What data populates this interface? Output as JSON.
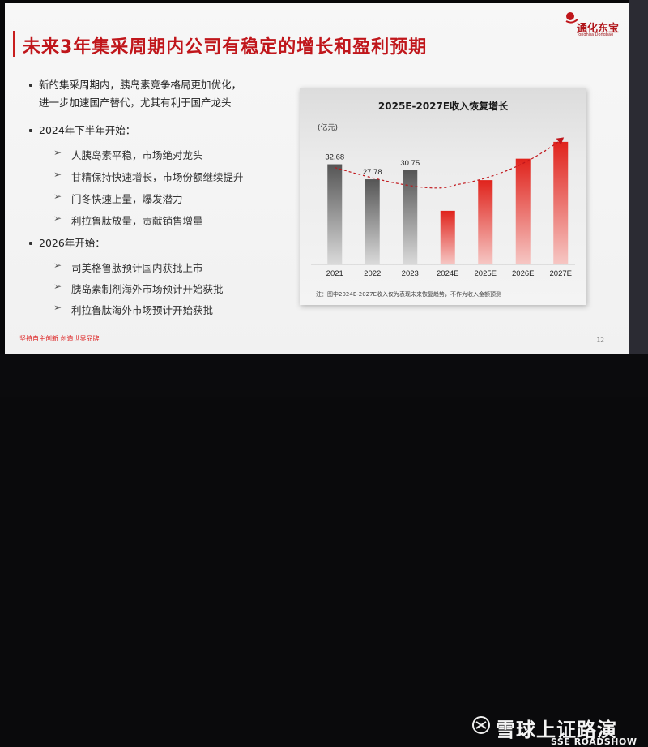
{
  "slide": {
    "title": "未来3年集采周期内公司有稳定的增长和盈利预期",
    "logo": {
      "name": "通化东宝",
      "sub": "Tonghua Dongbao"
    },
    "bullets": [
      {
        "lines": [
          "新的集采周期内，胰岛素竞争格局更加优化，",
          "进一步加速国产替代，尤其有利于国产龙头"
        ],
        "subs": []
      },
      {
        "lines": [
          "2024年下半年开始："
        ],
        "subs": [
          "人胰岛素平稳，市场绝对龙头",
          "甘精保持快速增长，市场份额继续提升",
          "门冬快速上量，爆发潜力",
          "利拉鲁肽放量，贡献销售增量"
        ]
      },
      {
        "lines": [
          "2026年开始："
        ],
        "subs": [
          "司美格鲁肽预计国内获批上市",
          "胰岛素制剂海外市场预计开始获批",
          "利拉鲁肽海外市场预计开始获批"
        ]
      }
    ],
    "footer_slogan": "坚持自主创新 创造世界品牌",
    "page_number": "12"
  },
  "chart_data": {
    "type": "bar",
    "title": "2025E-2027E收入恢复增长",
    "unit": "(亿元)",
    "categories": [
      "2021",
      "2022",
      "2023",
      "2024E",
      "2025E",
      "2026E",
      "2027E"
    ],
    "values": [
      32.68,
      27.78,
      30.75,
      17.5,
      27.5,
      34.5,
      40.0
    ],
    "labels": [
      "32.68",
      "27.78",
      "30.75",
      "",
      "",
      "",
      ""
    ],
    "colors": [
      "#6e6e6e",
      "#6e6e6e",
      "#6e6e6e",
      "#e0231c",
      "#e0231c",
      "#e0231c",
      "#e0231c"
    ],
    "trend_color": "#c0161b",
    "note": "注：图中2024E-2027E收入仅为表现未来恢复趋势，不作为收入金额预测"
  },
  "watermark": {
    "text": "雪球上证路演",
    "sub": "SSE ROADSHOW"
  }
}
